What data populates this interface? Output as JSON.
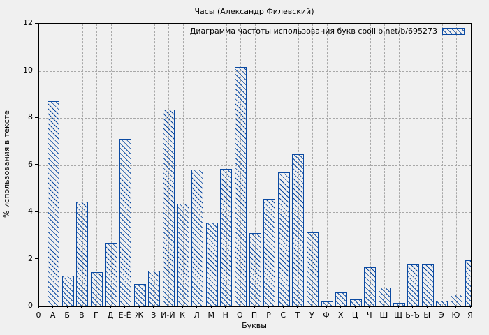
{
  "chart_data": {
    "type": "bar",
    "title": "Часы (Александр Филевский)",
    "legend": "Диаграмма частоты использования букв coollib.net/b/695273",
    "legend_position": "top-right-inside",
    "xlabel": "Буквы",
    "ylabel": "% использования в тексте",
    "origin_label": "0",
    "categories": [
      "А",
      "Б",
      "В",
      "Г",
      "Д",
      "Е-Ё",
      "Ж",
      "З",
      "И-Й",
      "К",
      "Л",
      "М",
      "Н",
      "О",
      "П",
      "Р",
      "С",
      "Т",
      "У",
      "Ф",
      "Х",
      "Ц",
      "Ч",
      "Ш",
      "Щ",
      "Ь-Ъ",
      "Ы",
      "Э",
      "Ю",
      "Я"
    ],
    "values": [
      8.7,
      1.3,
      4.45,
      1.45,
      2.7,
      7.1,
      0.95,
      1.5,
      8.35,
      4.35,
      5.8,
      3.55,
      5.85,
      10.15,
      3.1,
      4.55,
      5.7,
      6.45,
      3.15,
      0.2,
      0.6,
      0.3,
      1.65,
      0.8,
      0.15,
      1.8,
      1.8,
      0.25,
      0.5,
      1.95
    ],
    "ylim": [
      0,
      12
    ],
    "yticks": [
      0,
      2,
      4,
      6,
      8,
      10,
      12
    ],
    "grid": true,
    "hatch": "diagonal-down",
    "bar_color": "#0b4aa2",
    "grid_color": "#a8a8a8",
    "axis_color": "#000000",
    "text_color": "#000000",
    "background": "#f0f0f0"
  }
}
